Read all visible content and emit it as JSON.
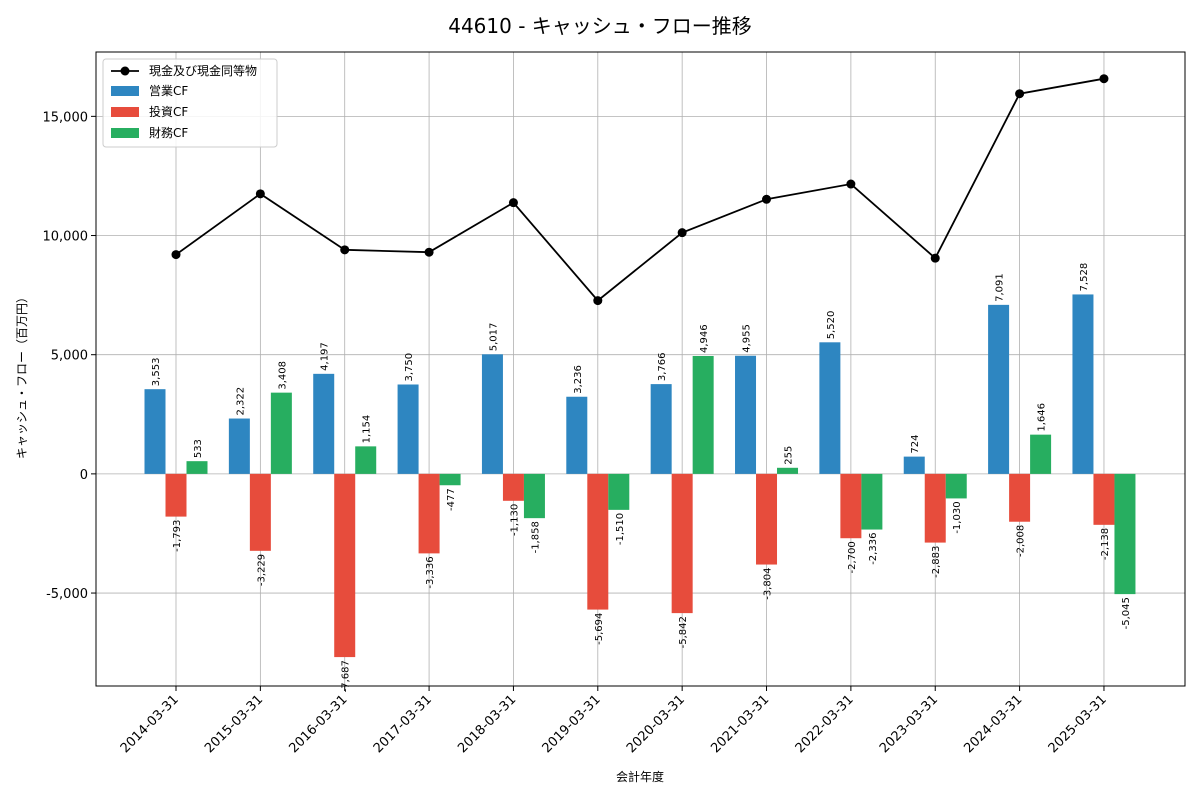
{
  "chart_data": {
    "type": "bar",
    "title": "44610 - キャッシュ・フロー推移",
    "xlabel": "会計年度",
    "ylabel": "キャッシュ・フロー（百万円）",
    "ylim": [
      -8900,
      17700
    ],
    "yticks": [
      -5000,
      0,
      5000,
      10000,
      15000
    ],
    "ytick_labels": [
      "-5,000",
      "0",
      "5,000",
      "10,000",
      "15,000"
    ],
    "grid": true,
    "legend_position": "top-left",
    "categories": [
      "2014-03-31",
      "2015-03-31",
      "2016-03-31",
      "2017-03-31",
      "2018-03-31",
      "2019-03-31",
      "2020-03-31",
      "2021-03-31",
      "2022-03-31",
      "2023-03-31",
      "2024-03-31",
      "2025-03-31"
    ],
    "series": [
      {
        "name": "営業CF",
        "kind": "bar",
        "color": "#2e86c1",
        "values": [
          3553,
          2322,
          4197,
          3750,
          5017,
          3236,
          3766,
          4955,
          5520,
          724,
          7091,
          7528
        ],
        "labels": [
          "3,553",
          "2,322",
          "4,197",
          "3,750",
          "5,017",
          "3,236",
          "3,766",
          "4,955",
          "5,520",
          "724",
          "7,091",
          "7,528"
        ]
      },
      {
        "name": "投資CF",
        "kind": "bar",
        "color": "#e74c3c",
        "values": [
          -1793,
          -3229,
          -7687,
          -3336,
          -1130,
          -5694,
          -5842,
          -3804,
          -2700,
          -2883,
          -2008,
          -2138
        ],
        "labels": [
          "-1,793",
          "-3,229",
          "-7,687",
          "-3,336",
          "-1,130",
          "-5,694",
          "-5,842",
          "-3,804",
          "-2,700",
          "-2,883",
          "-2,008",
          "-2,138"
        ]
      },
      {
        "name": "財務CF",
        "kind": "bar",
        "color": "#27ae60",
        "values": [
          533,
          3408,
          1154,
          -477,
          -1858,
          -1510,
          4946,
          255,
          -2336,
          -1030,
          1646,
          -5045
        ],
        "labels": [
          "533",
          "3,408",
          "1,154",
          "-477",
          "-1,858",
          "-1,510",
          "4,946",
          "255",
          "-2,336",
          "-1,030",
          "1,646",
          "-5,045"
        ]
      }
    ],
    "line": {
      "name": "現金及び現金同等物",
      "color": "#000000",
      "values": [
        9200,
        11750,
        9400,
        9300,
        11380,
        7270,
        10120,
        11520,
        12160,
        9050,
        15950,
        16580
      ]
    }
  }
}
